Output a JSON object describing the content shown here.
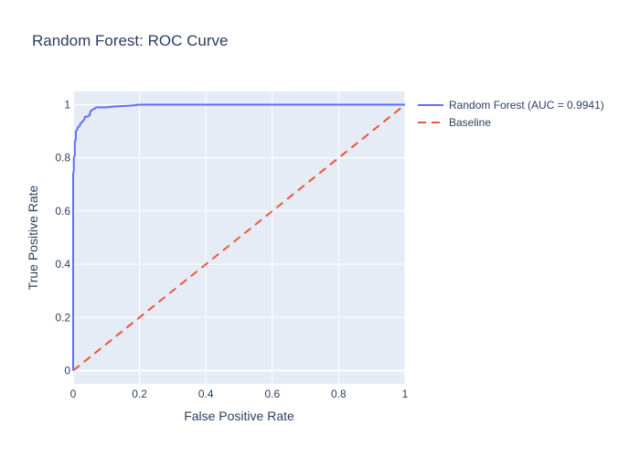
{
  "chart_data": {
    "type": "line",
    "title": "Random Forest: ROC Curve",
    "xlabel": "False Positive Rate",
    "ylabel": "True Positive Rate",
    "xlim": [
      0,
      1
    ],
    "ylim": [
      -0.05,
      1.05
    ],
    "x_ticks": [
      0,
      0.2,
      0.4,
      0.6,
      0.8,
      1
    ],
    "y_ticks": [
      0,
      0.2,
      0.4,
      0.6,
      0.8,
      1
    ],
    "x_tick_labels": [
      "0",
      "0.2",
      "0.4",
      "0.6",
      "0.8",
      "1"
    ],
    "y_tick_labels": [
      "0",
      "0.2",
      "0.4",
      "0.6",
      "0.8",
      "1"
    ],
    "grid": true,
    "legend_position": "top-right outside",
    "background_color": "#e5ecf6",
    "series": [
      {
        "name": "Random Forest (AUC = 0.9941)",
        "color": "#636efa",
        "dash": "solid",
        "x": [
          0,
          0,
          0.002,
          0.002,
          0.005,
          0.005,
          0.008,
          0.008,
          0.012,
          0.014,
          0.02,
          0.022,
          0.028,
          0.03,
          0.034,
          0.036,
          0.044,
          0.048,
          0.05,
          0.052,
          0.06,
          0.065,
          0.07,
          0.08,
          0.1,
          0.12,
          0.15,
          0.18,
          0.2,
          0.3,
          0.5,
          0.8,
          1
        ],
        "y": [
          0,
          0.74,
          0.75,
          0.8,
          0.81,
          0.86,
          0.87,
          0.9,
          0.905,
          0.915,
          0.92,
          0.93,
          0.935,
          0.94,
          0.945,
          0.955,
          0.955,
          0.96,
          0.96,
          0.975,
          0.983,
          0.985,
          0.99,
          0.99,
          0.99,
          0.993,
          0.995,
          0.997,
          1,
          1,
          1,
          1,
          1
        ]
      },
      {
        "name": "Baseline",
        "color": "#ef553b",
        "dash": "dash",
        "x": [
          0,
          1
        ],
        "y": [
          0,
          1
        ]
      }
    ]
  }
}
